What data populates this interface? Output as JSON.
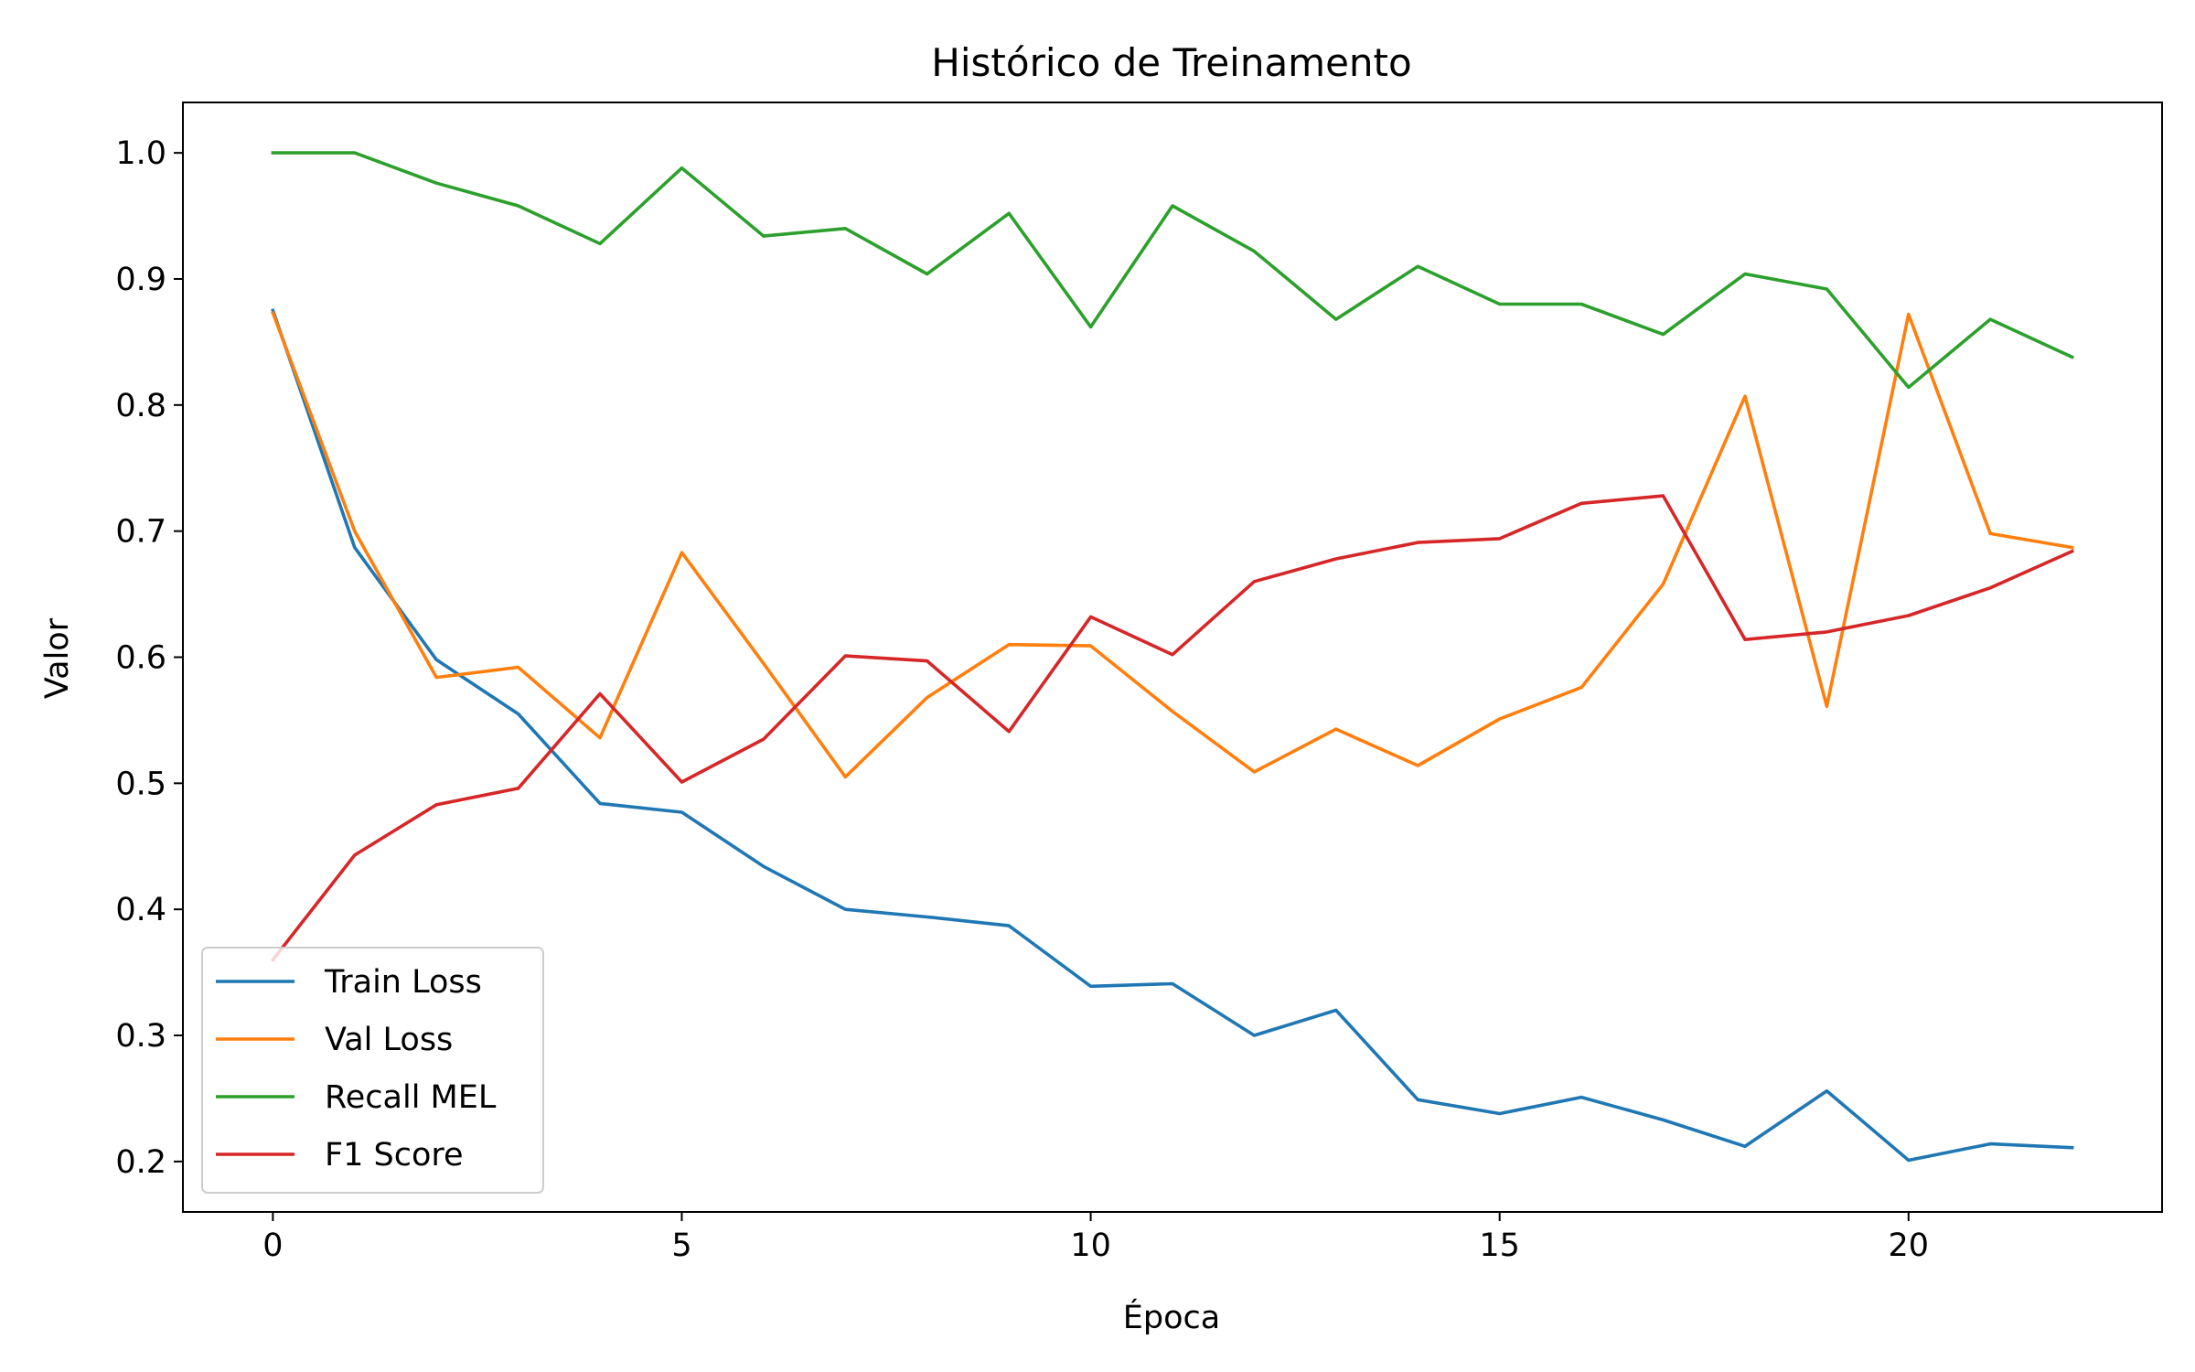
{
  "chart_data": {
    "type": "line",
    "title": "Histórico de Treinamento",
    "xlabel": "Época",
    "ylabel": "Valor",
    "xlim": [
      -1.1,
      23.1
    ],
    "ylim": [
      0.16,
      1.04
    ],
    "xticks": [
      0,
      5,
      10,
      15,
      20
    ],
    "yticks": [
      0.2,
      0.3,
      0.4,
      0.5,
      0.6,
      0.7,
      0.8,
      0.9,
      1.0
    ],
    "x": [
      0,
      1,
      2,
      3,
      4,
      5,
      6,
      7,
      8,
      9,
      10,
      11,
      12,
      13,
      14,
      15,
      16,
      17,
      18,
      19,
      20,
      21,
      22
    ],
    "legend_position": "lower-left",
    "grid": false,
    "series": [
      {
        "name": "Train Loss",
        "color": "#1f77b4",
        "values": [
          0.875,
          0.687,
          0.598,
          0.555,
          0.484,
          0.477,
          0.434,
          0.4,
          0.394,
          0.387,
          0.339,
          0.341,
          0.3,
          0.32,
          0.249,
          0.238,
          0.251,
          0.233,
          0.212,
          0.256,
          0.201,
          0.214,
          0.211
        ]
      },
      {
        "name": "Val Loss",
        "color": "#ff7f0e",
        "values": [
          0.873,
          0.7,
          0.584,
          0.592,
          0.536,
          0.683,
          0.595,
          0.505,
          0.568,
          0.61,
          0.609,
          0.557,
          0.509,
          0.543,
          0.514,
          0.551,
          0.576,
          0.658,
          0.807,
          0.561,
          0.872,
          0.698,
          0.687
        ]
      },
      {
        "name": "Recall MEL",
        "color": "#2ca02c",
        "values": [
          1.0,
          1.0,
          0.976,
          0.958,
          0.928,
          0.988,
          0.934,
          0.94,
          0.904,
          0.952,
          0.862,
          0.958,
          0.922,
          0.868,
          0.91,
          0.88,
          0.88,
          0.856,
          0.904,
          0.892,
          0.814,
          0.868,
          0.838
        ]
      },
      {
        "name": "F1 Score",
        "color": "#d62728",
        "values": [
          0.36,
          0.443,
          0.483,
          0.496,
          0.571,
          0.501,
          0.535,
          0.601,
          0.597,
          0.541,
          0.632,
          0.602,
          0.66,
          0.678,
          0.691,
          0.694,
          0.722,
          0.728,
          0.614,
          0.62,
          0.633,
          0.655,
          0.684
        ]
      }
    ]
  }
}
